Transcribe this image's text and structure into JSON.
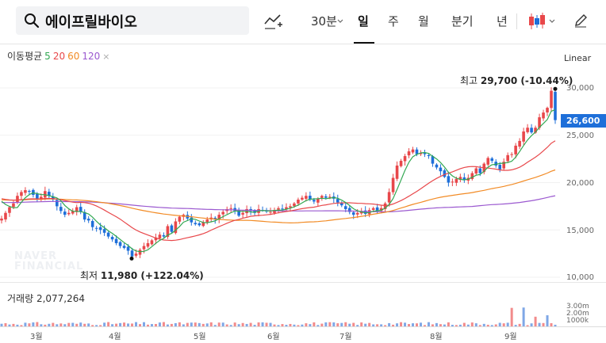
{
  "header": {
    "search_value": "에이프릴바이오",
    "tools": {
      "interval_30m": "30분",
      "day": "일",
      "week": "주",
      "month": "월",
      "quarter": "분기",
      "year": "년"
    },
    "active_tool": "일",
    "icons": [
      "search-icon",
      "compare-chart-icon",
      "chevron-down-icon",
      "candle-type-icon",
      "pencil-icon"
    ]
  },
  "legend": {
    "title": "이동평균",
    "ma": [
      {
        "label": "5",
        "color": "#32a852"
      },
      {
        "label": "20",
        "color": "#e8474a"
      },
      {
        "label": "60",
        "color": "#f28b25"
      },
      {
        "label": "120",
        "color": "#9b59d0"
      }
    ]
  },
  "scale_label": "Linear",
  "current_price": "26,600",
  "annotations": {
    "high_label": "최고",
    "high_value": "29,700 (-10.44%)",
    "low_label": "최저",
    "low_value": "11,980 (+122.04%)"
  },
  "watermark": {
    "line1": "NAVER",
    "line2": "FINANCIAL"
  },
  "chart_data": {
    "type": "candlestick",
    "y_ticks": [
      "30,000",
      "25,000",
      "20,000",
      "15,000",
      "10,000"
    ],
    "ylim": [
      10000,
      31000
    ],
    "x_months": [
      "3월",
      "4월",
      "5월",
      "6월",
      "7월",
      "8월",
      "9월"
    ],
    "series_close": [
      16200,
      16800,
      17400,
      17800,
      18600,
      19000,
      19200,
      19100,
      18700,
      18200,
      18500,
      19100,
      18600,
      18200,
      17500,
      17000,
      16600,
      16800,
      17000,
      17400,
      16900,
      16100,
      16000,
      15300,
      15200,
      15000,
      14700,
      14300,
      14000,
      13600,
      13300,
      13100,
      12800,
      12200,
      12500,
      12900,
      13300,
      13600,
      13900,
      14200,
      14500,
      14300,
      15400,
      14800,
      15900,
      16400,
      16600,
      16200,
      15800,
      15600,
      15500,
      15800,
      16100,
      16300,
      16100,
      16600,
      16900,
      17200,
      17300,
      17000,
      16500,
      16800,
      17200,
      17000,
      16800,
      17200,
      17100,
      17000,
      16900,
      17100,
      17300,
      17200,
      17400,
      17500,
      17800,
      18200,
      18400,
      18600,
      18200,
      18000,
      18300,
      18600,
      18400,
      18500,
      18300,
      17900,
      17600,
      17200,
      16900,
      16600,
      16800,
      17000,
      16700,
      17100,
      17300,
      17000,
      17300,
      17800,
      19000,
      20500,
      21800,
      22300,
      22800,
      23300,
      23500,
      23000,
      23100,
      23000,
      22800,
      22000,
      21600,
      21200,
      20600,
      20000,
      20100,
      20400,
      20600,
      20300,
      20500,
      21000,
      21500,
      21000,
      22000,
      22600,
      22300,
      21800,
      21400,
      22200,
      22900,
      23000,
      23900,
      24400,
      25400,
      25800,
      25300,
      25800,
      26900,
      27400,
      27900,
      29700,
      26600
    ],
    "volume_label": "거래량",
    "volume_value": "2,077,264",
    "volume_ticks": [
      "3.00m",
      "2.00m",
      "1000k"
    ]
  }
}
